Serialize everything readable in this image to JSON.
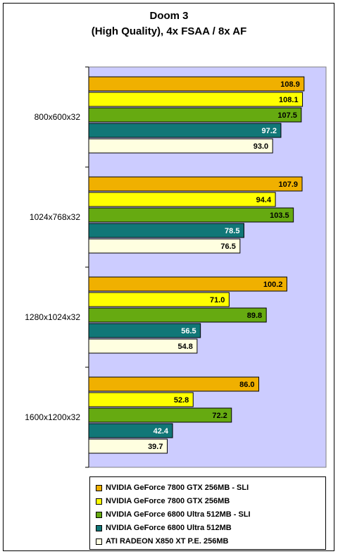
{
  "title": "Doom 3",
  "subtitle": "(High Quality), 4x FSAA / 8x AF",
  "chart_data": {
    "type": "bar",
    "orientation": "horizontal",
    "categories": [
      "800x600x32",
      "1024x768x32",
      "1280x1024x32",
      "1600x1200x32"
    ],
    "series": [
      {
        "name": "NVIDIA GeForce 7800 GTX 256MB - SLI",
        "color": "#F0B000",
        "label_color": "#000000",
        "values": [
          108.9,
          107.9,
          100.2,
          86.0
        ]
      },
      {
        "name": "NVIDIA GeForce 7800 GTX 256MB",
        "color": "#FFFF00",
        "label_color": "#000000",
        "values": [
          108.1,
          94.4,
          71.0,
          52.8
        ]
      },
      {
        "name": "NVIDIA GeForce 6800 Ultra 512MB - SLI",
        "color": "#66AA11",
        "label_color": "#000000",
        "values": [
          107.5,
          103.5,
          89.8,
          72.2
        ]
      },
      {
        "name": "NVIDIA GeForce 6800 Ultra 512MB",
        "color": "#117777",
        "label_color": "#FFFFFF",
        "values": [
          97.2,
          78.5,
          56.5,
          42.4
        ]
      },
      {
        "name": "ATI RADEON X850 XT P.E. 256MB",
        "color": "#FFFFE0",
        "label_color": "#000000",
        "values": [
          93.0,
          76.5,
          54.8,
          39.7
        ]
      }
    ],
    "xlim": [
      0,
      120
    ],
    "plot_background": "#CCCCFF",
    "grid": false,
    "legend_position": "bottom",
    "title": "Doom 3",
    "subtitle": "(High Quality), 4x FSAA / 8x AF"
  }
}
